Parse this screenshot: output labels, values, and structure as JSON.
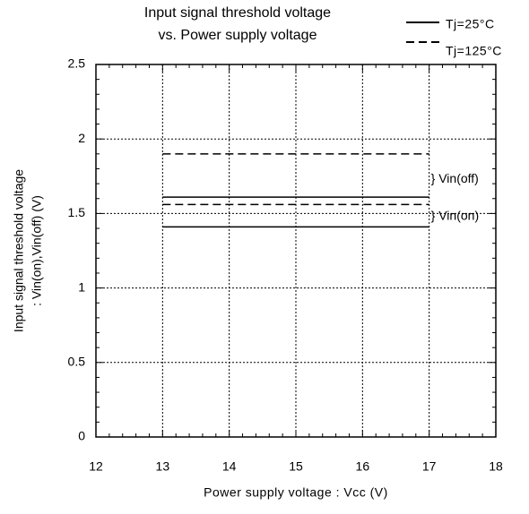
{
  "chart_data": {
    "type": "line",
    "title": [
      "Input signal threshold voltage",
      "vs. Power supply voltage"
    ],
    "xlabel": "Power supply voltage : Vcc (V)",
    "ylabel": [
      "Input signal threshold voltage",
      ": Vin(on),Vin(off) (V)"
    ],
    "x": [
      13,
      17
    ],
    "series": [
      {
        "name": "Tj=25°C",
        "color": "#000000",
        "dash": "solid",
        "lines": [
          [
            1.61,
            1.61
          ],
          [
            1.41,
            1.41
          ]
        ]
      },
      {
        "name": "Tj=125°C",
        "color": "#000000",
        "dash": "dashed",
        "lines": [
          [
            1.9,
            1.9
          ],
          [
            1.56,
            1.56
          ]
        ]
      }
    ],
    "annotations": [
      {
        "text": "} Vin(off)",
        "x": 17,
        "y": 1.73
      },
      {
        "text": "} Vin(on)",
        "x": 17,
        "y": 1.48
      }
    ],
    "xlim": [
      12,
      18
    ],
    "xticks": [
      12,
      13,
      14,
      15,
      16,
      17,
      18
    ],
    "ylim": [
      0,
      2.5
    ],
    "yticks": [
      0,
      0.5,
      1,
      1.5,
      2,
      2.5
    ],
    "minor_ticks": 5,
    "grid": true,
    "legend": "top-right"
  }
}
